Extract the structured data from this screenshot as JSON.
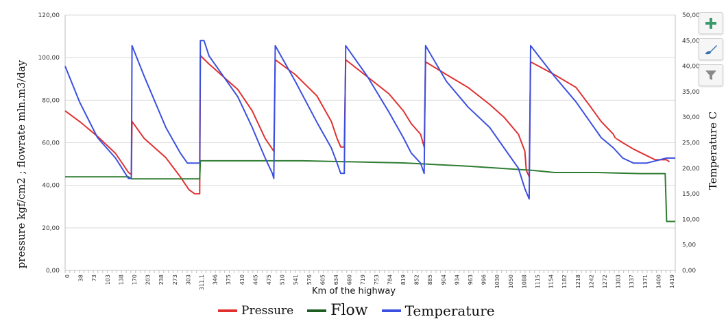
{
  "chart_data": {
    "type": "line",
    "xlabel": "Km of the highway",
    "ylabel": "pressure kgf/cm2 ; flowrate mln.m3/day",
    "y2label": "Temperature C",
    "ylim": [
      0,
      120
    ],
    "y2lim": [
      0,
      50
    ],
    "grid": true,
    "legend_position": "bottom",
    "y_ticks": [
      "0,00",
      "20,00",
      "40,00",
      "60,00",
      "80,00",
      "100,00",
      "120,00"
    ],
    "y2_ticks": [
      "0,00",
      "5,00",
      "10,00",
      "15,00",
      "20,00",
      "25,00",
      "30,00",
      "35,00",
      "40,00",
      "45,00",
      "50,00"
    ],
    "x_ticks": [
      "0",
      "38",
      "73",
      "103",
      "138",
      "170",
      "203",
      "238",
      "273",
      "303",
      "311,1",
      "346",
      "375",
      "410",
      "445",
      "475",
      "510",
      "541",
      "576",
      "605",
      "634",
      "680",
      "719",
      "753",
      "784",
      "819",
      "852",
      "885",
      "904",
      "934",
      "963",
      "996",
      "1030",
      "1050",
      "1088",
      "1115",
      "1154",
      "1182",
      "1218",
      "1242",
      "1272",
      "1303",
      "1337",
      "1371",
      "1400",
      "1419"
    ],
    "series": [
      {
        "name": "Pressure",
        "color": "#e03030",
        "axis": "left",
        "points": [
          [
            0,
            75
          ],
          [
            20,
            70
          ],
          [
            45,
            63
          ],
          [
            70,
            55
          ],
          [
            88,
            46
          ],
          [
            92,
            45
          ],
          [
            93,
            70
          ],
          [
            110,
            62
          ],
          [
            140,
            53
          ],
          [
            160,
            44
          ],
          [
            172,
            38
          ],
          [
            180,
            36
          ],
          [
            187,
            36
          ],
          [
            188,
            101
          ],
          [
            200,
            97
          ],
          [
            240,
            85
          ],
          [
            260,
            75
          ],
          [
            278,
            62
          ],
          [
            288,
            57
          ],
          [
            290,
            56
          ],
          [
            292,
            99
          ],
          [
            320,
            92
          ],
          [
            350,
            82
          ],
          [
            370,
            70
          ],
          [
            378,
            62
          ],
          [
            383,
            58
          ],
          [
            388,
            58
          ],
          [
            390,
            99
          ],
          [
            420,
            91
          ],
          [
            450,
            83
          ],
          [
            470,
            75
          ],
          [
            481,
            69
          ],
          [
            494,
            64
          ],
          [
            499,
            58
          ],
          [
            501,
            98
          ],
          [
            530,
            92
          ],
          [
            560,
            86
          ],
          [
            590,
            78
          ],
          [
            610,
            72
          ],
          [
            630,
            64
          ],
          [
            639,
            56
          ],
          [
            641,
            47
          ],
          [
            645,
            44
          ],
          [
            647,
            98
          ],
          [
            680,
            92
          ],
          [
            710,
            86
          ],
          [
            730,
            77
          ],
          [
            745,
            70
          ],
          [
            762,
            64
          ],
          [
            765,
            62
          ]
        ],
        "gaps": [
          [
            765,
            766
          ]
        ],
        "extra_points": [
          [
            766,
            62
          ],
          [
            775,
            60
          ],
          [
            790,
            57
          ],
          [
            808,
            54
          ],
          [
            820,
            52
          ],
          [
            836,
            52
          ],
          [
            840,
            51
          ]
        ]
      },
      {
        "name": "Flow",
        "color": "#2e7d32",
        "axis": "left",
        "points": [
          [
            0,
            44
          ],
          [
            88,
            44
          ],
          [
            92,
            43
          ],
          [
            187,
            43
          ],
          [
            188,
            51.5
          ],
          [
            330,
            51.5
          ],
          [
            470,
            50.5
          ],
          [
            560,
            49
          ],
          [
            650,
            47
          ],
          [
            680,
            46
          ],
          [
            740,
            46
          ],
          [
            800,
            45.5
          ],
          [
            834,
            45.5
          ],
          [
            836,
            23
          ],
          [
            848,
            23
          ]
        ]
      },
      {
        "name": "Temperature",
        "color": "#3b50e0",
        "axis": "right",
        "points": [
          [
            0,
            40
          ],
          [
            20,
            33
          ],
          [
            45,
            26
          ],
          [
            70,
            22
          ],
          [
            88,
            18
          ],
          [
            92,
            18
          ],
          [
            93,
            44
          ],
          [
            110,
            38
          ],
          [
            140,
            28
          ],
          [
            160,
            23
          ],
          [
            170,
            21
          ],
          [
            187,
            21
          ],
          [
            188,
            45
          ],
          [
            193,
            45
          ],
          [
            200,
            42
          ],
          [
            240,
            34
          ],
          [
            260,
            28
          ],
          [
            278,
            22
          ],
          [
            288,
            19
          ],
          [
            290,
            18
          ],
          [
            292,
            44
          ],
          [
            320,
            37
          ],
          [
            350,
            29
          ],
          [
            370,
            24
          ],
          [
            378,
            21
          ],
          [
            383,
            19
          ],
          [
            388,
            19
          ],
          [
            390,
            44
          ],
          [
            420,
            38
          ],
          [
            450,
            31
          ],
          [
            470,
            26
          ],
          [
            481,
            23
          ],
          [
            494,
            21
          ],
          [
            499,
            19
          ],
          [
            501,
            44
          ],
          [
            530,
            37
          ],
          [
            560,
            32
          ],
          [
            590,
            28
          ],
          [
            610,
            24
          ],
          [
            630,
            20
          ],
          [
            639,
            16
          ],
          [
            645,
            14
          ],
          [
            647,
            44
          ],
          [
            680,
            38
          ],
          [
            710,
            33
          ],
          [
            730,
            29
          ],
          [
            745,
            26
          ],
          [
            762,
            24
          ],
          [
            775,
            22
          ],
          [
            790,
            21
          ],
          [
            808,
            21
          ],
          [
            836,
            22
          ],
          [
            848,
            22
          ]
        ]
      }
    ]
  },
  "toolbar": {
    "add_icon": "plus-icon",
    "style_icon": "brush-icon",
    "filter_icon": "funnel-icon"
  },
  "legend": {
    "pressure": "Pressure",
    "flow": "Flow",
    "temperature": "Temperature"
  }
}
